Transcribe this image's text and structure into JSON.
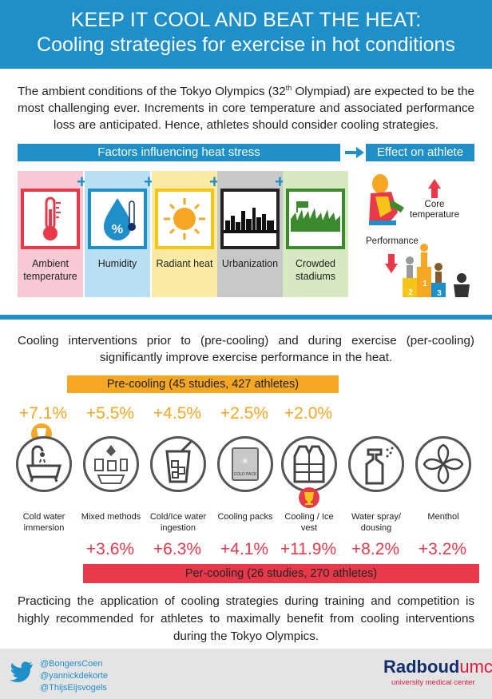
{
  "header": {
    "line1": "KEEP IT COOL AND BEAT THE HEAT:",
    "line2": "Cooling strategies for exercise in hot conditions"
  },
  "intro": {
    "part1": "The ambient conditions of the Tokyo Olympics (32",
    "sup": "th",
    "part2": " Olympiad) are expected to be the most challenging ever. Increments in core temperature and associated performance loss are anticipated. Hence, athletes should consider cooling strategies."
  },
  "factors": {
    "title": "Factors influencing heat stress",
    "items": [
      {
        "label": "Ambient temperature"
      },
      {
        "label": "Humidity"
      },
      {
        "label": "Radiant heat"
      },
      {
        "label": "Urbanization"
      },
      {
        "label": "Crowded stadiums"
      }
    ],
    "colors": [
      "#f7c9d4",
      "#b9dff2",
      "#fbeaa3",
      "#c8c8c8",
      "#d6e9c2"
    ],
    "borders": [
      "#e8394b",
      "#1e8fc9",
      "#f5c518",
      "#222222",
      "#3c8a2e"
    ]
  },
  "effect": {
    "title": "Effect on athlete",
    "core_label": "Core temperature",
    "performance_label": "Performance",
    "podium": [
      "2",
      "1",
      "3"
    ]
  },
  "cooling": {
    "intro": "Cooling interventions prior to (pre-cooling) and during exercise (per-cooling) significantly improve exercise performance in the heat.",
    "pre_title": "Pre-cooling (45 studies, 427 athletes)",
    "per_title": "Per-cooling (26 studies, 270 athletes)",
    "pre_values": [
      "+7.1%",
      "+5.5%",
      "+4.5%",
      "+2.5%",
      "+2.0%"
    ],
    "per_values": [
      "+3.6%",
      "+6.3%",
      "+4.1%",
      "+11.9%",
      "+8.2%",
      "+3.2%"
    ],
    "methods": [
      {
        "label": "Cold water immersion",
        "icon": "bathtub-icon"
      },
      {
        "label": "Mixed methods",
        "icon": "mixed-methods-icon"
      },
      {
        "label": "Cold/Ice water ingestion",
        "icon": "ice-glass-icon"
      },
      {
        "label": "Cooling packs",
        "icon": "cooling-pack-icon"
      },
      {
        "label": "Cooling / Ice vest",
        "icon": "vest-icon"
      },
      {
        "label": "Water spray/ dousing",
        "icon": "spray-bottle-icon"
      },
      {
        "label": "Menthol",
        "icon": "mint-leaf-icon"
      }
    ],
    "cooling_pack_text": "COLD PACK"
  },
  "conclusion": "Practicing the application of cooling strategies during training and competition is highly recommended for athletes to maximally benefit from cooling interventions during the Tokyo Olympics.",
  "footer": {
    "handles": [
      "@BongersCoen",
      "@yannickdekorte",
      "@ThijsEijsvogels"
    ],
    "brand_main": "Radboud",
    "brand_umc": "umc",
    "brand_sub": "university medical center"
  },
  "palette": {
    "blue": "#1e8fc9",
    "orange": "#f5a623",
    "red": "#e8394b",
    "navy": "#13306e"
  }
}
